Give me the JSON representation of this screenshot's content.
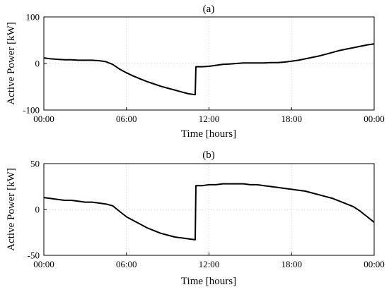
{
  "chart_data": [
    {
      "type": "line",
      "title": "(a)",
      "xlabel": "Time [hours]",
      "ylabel": "Active Power [kW]",
      "xlim": [
        0,
        24
      ],
      "ylim": [
        -100,
        100
      ],
      "xticks": [
        0,
        6,
        12,
        18,
        24
      ],
      "xtick_labels": [
        "00:00",
        "06:00",
        "12:00",
        "18:00",
        "00:00"
      ],
      "yticks": [
        -100,
        0,
        100
      ],
      "ytick_labels": [
        "-100",
        "0",
        "100"
      ],
      "grid": true,
      "series": [
        {
          "x": [
            0,
            0.5,
            1,
            1.5,
            2,
            2.5,
            3,
            3.5,
            4,
            4.5,
            5,
            5.5,
            6,
            6.5,
            7,
            7.5,
            8,
            8.5,
            9,
            9.5,
            10,
            10.5,
            11,
            11.05,
            11.5,
            12,
            12.5,
            13,
            13.5,
            14,
            14.5,
            15,
            15.5,
            16,
            16.5,
            17,
            17.5,
            18,
            18.5,
            19,
            19.5,
            20,
            20.5,
            21,
            21.5,
            22,
            22.5,
            23,
            23.5,
            24
          ],
          "y": [
            12,
            10,
            9,
            8,
            8,
            7,
            7,
            7,
            6,
            4,
            -2,
            -12,
            -20,
            -27,
            -33,
            -39,
            -44,
            -49,
            -53,
            -57,
            -61,
            -65,
            -67,
            -7,
            -7,
            -6,
            -4,
            -2,
            -1,
            0,
            1,
            1,
            1,
            1,
            2,
            2,
            3,
            5,
            7,
            10,
            13,
            16,
            20,
            24,
            28,
            31,
            34,
            37,
            40,
            42
          ]
        }
      ]
    },
    {
      "type": "line",
      "title": "(b)",
      "xlabel": "Time [hours]",
      "ylabel": "Active Power [kW]",
      "xlim": [
        0,
        24
      ],
      "ylim": [
        -50,
        50
      ],
      "xticks": [
        0,
        6,
        12,
        18,
        24
      ],
      "xtick_labels": [
        "00:00",
        "06:00",
        "12:00",
        "18:00",
        "00:00"
      ],
      "yticks": [
        -50,
        0,
        50
      ],
      "ytick_labels": [
        "-50",
        "0",
        "50"
      ],
      "grid": true,
      "series": [
        {
          "x": [
            0,
            0.5,
            1,
            1.5,
            2,
            2.5,
            3,
            3.5,
            4,
            4.5,
            5,
            5.5,
            6,
            6.5,
            7,
            7.5,
            8,
            8.5,
            9,
            9.5,
            10,
            10.5,
            11,
            11.05,
            11.5,
            12,
            12.5,
            13,
            13.5,
            14,
            14.5,
            15,
            15.5,
            16,
            16.5,
            17,
            17.5,
            18,
            18.5,
            19,
            19.5,
            20,
            20.5,
            21,
            21.5,
            22,
            22.5,
            23,
            23.5,
            24
          ],
          "y": [
            13,
            12,
            11,
            10,
            10,
            9,
            8,
            8,
            7,
            6,
            4,
            -2,
            -8,
            -12,
            -16,
            -20,
            -23,
            -26,
            -28,
            -30,
            -31,
            -32,
            -33,
            26,
            26,
            27,
            27,
            28,
            28,
            28,
            28,
            27,
            27,
            26,
            25,
            24,
            23,
            22,
            21,
            20,
            18,
            16,
            14,
            12,
            9,
            6,
            3,
            -2,
            -8,
            -14
          ]
        }
      ]
    }
  ]
}
